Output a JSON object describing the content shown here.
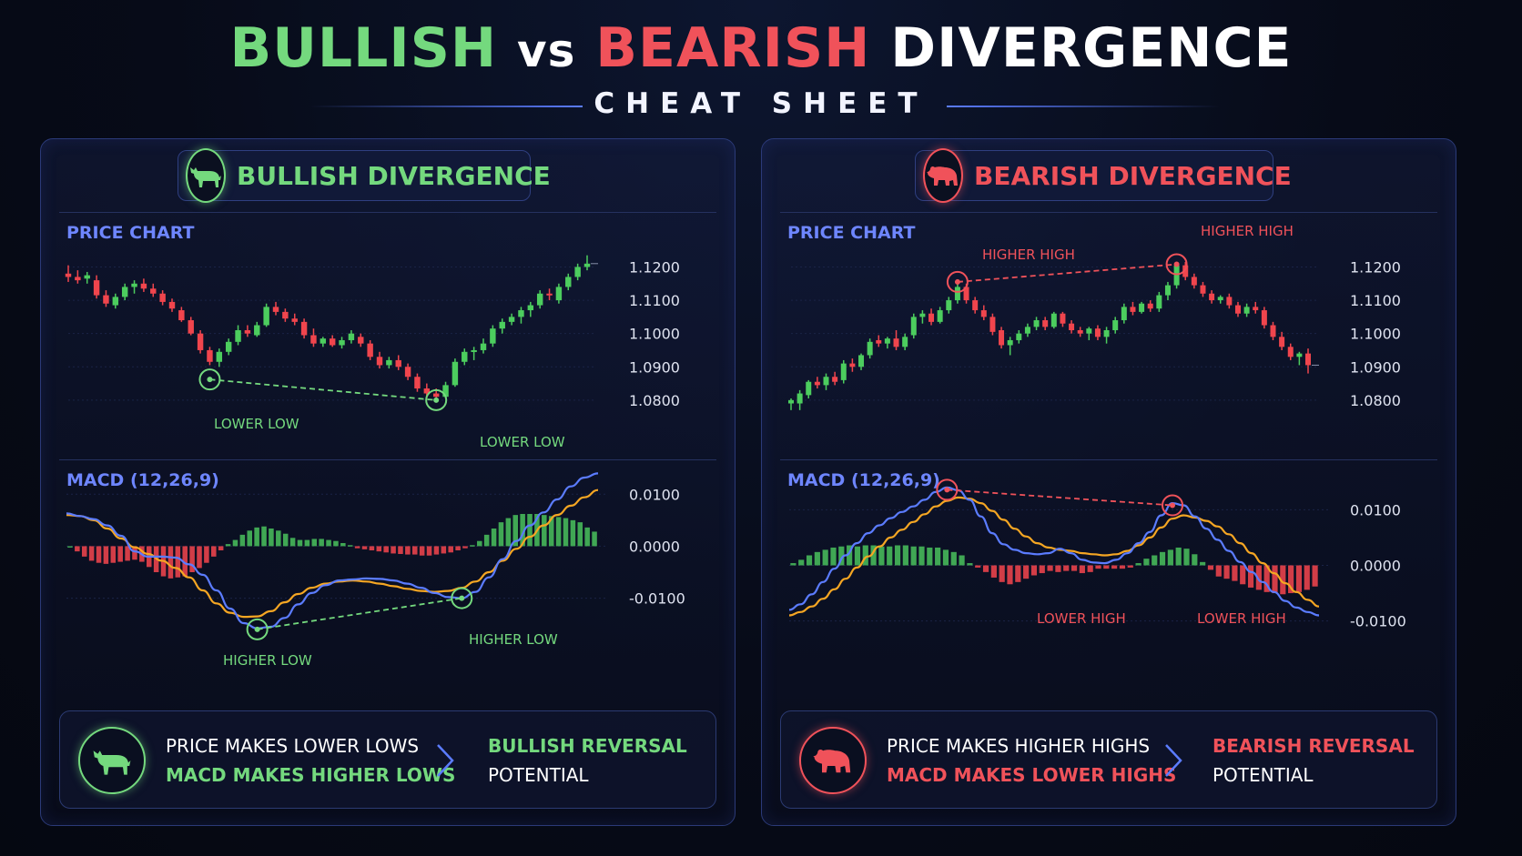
{
  "header": {
    "title_part1": "BULLISH",
    "title_part2": "vs",
    "title_part3": "BEARISH",
    "title_part4": "DIVERGENCE",
    "subtitle": "CHEAT SHEET"
  },
  "colors": {
    "bull": "#74d97e",
    "bear": "#f0525a",
    "accent": "#6e86ff",
    "macd_line": "#5b7cff",
    "signal_line": "#f5a623"
  },
  "bullish": {
    "badge": "BULLISH DIVERGENCE",
    "icon": "bull-icon",
    "price_label": "PRICE CHART",
    "macd_label": "MACD (12,26,9)",
    "summary": {
      "line1": "PRICE MAKES LOWER LOWS",
      "line2": "MACD MAKES HIGHER LOWS",
      "result1": "BULLISH REVERSAL",
      "result2": "POTENTIAL"
    }
  },
  "bearish": {
    "badge": "BEARISH DIVERGENCE",
    "icon": "bear-icon",
    "price_label": "PRICE CHART",
    "macd_label": "MACD (12,26,9)",
    "summary": {
      "line1": "PRICE MAKES HIGHER HIGHS",
      "line2": "MACD MAKES LOWER HIGHS",
      "result1": "BEARISH REVERSAL",
      "result2": "POTENTIAL"
    }
  },
  "chart_data": [
    {
      "id": "bull_price",
      "type": "candlestick",
      "title": "PRICE CHART",
      "y_ticks": [
        "1.1200",
        "1.1100",
        "1.1000",
        "1.0900",
        "1.0800"
      ],
      "y_tick_values": [
        1.12,
        1.11,
        1.1,
        1.09,
        1.08
      ],
      "ylim": [
        1.0775,
        1.1245
      ],
      "candles": [
        [
          1.118,
          1.1205,
          1.1155,
          1.117
        ],
        [
          1.117,
          1.119,
          1.115,
          1.116
        ],
        [
          1.1165,
          1.1185,
          1.115,
          1.1175
        ],
        [
          1.116,
          1.1175,
          1.1105,
          1.1115
        ],
        [
          1.1115,
          1.113,
          1.108,
          1.109
        ],
        [
          1.1085,
          1.112,
          1.1075,
          1.111
        ],
        [
          1.111,
          1.115,
          1.11,
          1.114
        ],
        [
          1.114,
          1.116,
          1.112,
          1.115
        ],
        [
          1.115,
          1.1165,
          1.1125,
          1.1135
        ],
        [
          1.1135,
          1.115,
          1.111,
          1.112
        ],
        [
          1.112,
          1.113,
          1.1085,
          1.1095
        ],
        [
          1.1095,
          1.1105,
          1.1065,
          1.1075
        ],
        [
          1.107,
          1.108,
          1.1035,
          1.104
        ],
        [
          1.104,
          1.105,
          1.0995,
          1.1
        ],
        [
          1.1,
          1.101,
          1.094,
          1.095
        ],
        [
          1.095,
          1.096,
          1.0905,
          1.0915
        ],
        [
          1.0915,
          1.0955,
          1.09,
          1.0945
        ],
        [
          1.0945,
          1.0985,
          1.0935,
          1.0975
        ],
        [
          1.0975,
          1.1025,
          1.0965,
          1.101
        ],
        [
          1.101,
          1.1025,
          1.099,
          1.1
        ],
        [
          1.0995,
          1.1035,
          1.099,
          1.1025
        ],
        [
          1.1025,
          1.109,
          1.102,
          1.108
        ],
        [
          1.108,
          1.1095,
          1.1055,
          1.1065
        ],
        [
          1.1065,
          1.1075,
          1.1035,
          1.1045
        ],
        [
          1.1045,
          1.106,
          1.1025,
          1.1035
        ],
        [
          1.1035,
          1.1045,
          1.0985,
          1.0995
        ],
        [
          1.0995,
          1.1015,
          1.096,
          1.097
        ],
        [
          1.097,
          1.099,
          1.096,
          1.0985
        ],
        [
          1.0985,
          1.0995,
          1.096,
          1.0965
        ],
        [
          1.0965,
          1.099,
          1.0955,
          1.098
        ],
        [
          1.098,
          1.101,
          1.097,
          1.1
        ],
        [
          1.099,
          1.1,
          1.096,
          1.097
        ],
        [
          1.097,
          1.098,
          1.092,
          1.093
        ],
        [
          1.093,
          1.0945,
          1.0895,
          1.0905
        ],
        [
          1.0905,
          1.093,
          1.0895,
          1.092
        ],
        [
          1.092,
          1.0935,
          1.089,
          1.09
        ],
        [
          1.09,
          1.091,
          1.086,
          1.087
        ],
        [
          1.087,
          1.088,
          1.0825,
          1.0835
        ],
        [
          1.0835,
          1.085,
          1.0805,
          1.082
        ],
        [
          1.082,
          1.0835,
          1.08,
          1.081
        ],
        [
          1.081,
          1.0855,
          1.0805,
          1.0845
        ],
        [
          1.0845,
          1.0925,
          1.084,
          1.0915
        ],
        [
          1.0915,
          1.0955,
          1.0905,
          1.0945
        ],
        [
          1.0945,
          1.096,
          1.092,
          1.095
        ],
        [
          1.095,
          1.0985,
          1.094,
          1.097
        ],
        [
          1.097,
          1.1025,
          1.096,
          1.1015
        ],
        [
          1.1015,
          1.1045,
          1.1,
          1.1035
        ],
        [
          1.1035,
          1.106,
          1.1025,
          1.105
        ],
        [
          1.105,
          1.108,
          1.103,
          1.107
        ],
        [
          1.107,
          1.1095,
          1.105,
          1.1085
        ],
        [
          1.1085,
          1.113,
          1.1075,
          1.112
        ],
        [
          1.112,
          1.1135,
          1.11,
          1.1115
        ],
        [
          1.11,
          1.115,
          1.109,
          1.114
        ],
        [
          1.114,
          1.118,
          1.113,
          1.117
        ],
        [
          1.117,
          1.121,
          1.116,
          1.12
        ],
        [
          1.12,
          1.1235,
          1.119,
          1.121
        ]
      ],
      "annotations": [
        {
          "label": "LOWER LOW",
          "value": 1.0862
        },
        {
          "label": "LOWER LOW",
          "value": 1.08
        }
      ]
    },
    {
      "id": "bull_macd",
      "type": "macd",
      "title": "MACD (12,26,9)",
      "y_ticks": [
        "0.0100",
        "0.0000",
        "-0.0100"
      ],
      "y_tick_values": [
        0.01,
        0.0,
        -0.01
      ],
      "ylim": [
        -0.0162,
        0.0146
      ],
      "macd": [
        0.0063,
        0.0058,
        0.0052,
        0.004,
        0.002,
        -0.001,
        -0.002,
        -0.002,
        -0.0022,
        -0.0035,
        -0.0055,
        -0.0085,
        -0.012,
        -0.0148,
        -0.0158,
        -0.0155,
        -0.0138,
        -0.0112,
        -0.009,
        -0.0075,
        -0.0066,
        -0.0064,
        -0.0062,
        -0.0063,
        -0.0066,
        -0.0072,
        -0.008,
        -0.009,
        -0.0098,
        -0.01,
        -0.0088,
        -0.006,
        -0.0025,
        0.001,
        0.004,
        0.0065,
        0.009,
        0.0115,
        0.0132,
        0.014
      ],
      "signal": [
        0.006,
        0.0058,
        0.005,
        0.0034,
        0.0015,
        -0.0002,
        -0.0015,
        -0.0028,
        -0.0042,
        -0.006,
        -0.0085,
        -0.011,
        -0.0128,
        -0.0136,
        -0.0135,
        -0.0125,
        -0.0108,
        -0.0092,
        -0.008,
        -0.0072,
        -0.0068,
        -0.0066,
        -0.0068,
        -0.0072,
        -0.0077,
        -0.0082,
        -0.0086,
        -0.0088,
        -0.0086,
        -0.008,
        -0.0068,
        -0.005,
        -0.0028,
        -0.0005,
        0.0018,
        0.004,
        0.006,
        0.0078,
        0.0094,
        0.0108
      ],
      "histogram": [
        0.0,
        -0.001,
        -0.002,
        -0.0028,
        -0.0032,
        -0.0034,
        -0.0032,
        -0.003,
        -0.0028,
        -0.0026,
        -0.003,
        -0.004,
        -0.005,
        -0.0058,
        -0.0062,
        -0.006,
        -0.0058,
        -0.005,
        -0.0042,
        -0.0032,
        -0.002,
        -0.0008,
        0.0004,
        0.0012,
        0.0022,
        0.003,
        0.0036,
        0.0038,
        0.0034,
        0.003,
        0.0024,
        0.0016,
        0.0012,
        0.0012,
        0.0014,
        0.0014,
        0.0012,
        0.001,
        0.0006,
        0.0002,
        -0.0004,
        -0.0006,
        -0.0008,
        -0.001,
        -0.0012,
        -0.0014,
        -0.0015,
        -0.0016,
        -0.0016,
        -0.0018,
        -0.0018,
        -0.0016,
        -0.0014,
        -0.0012,
        -0.0008,
        -0.0004,
        0.0002,
        0.001,
        0.0022,
        0.0034,
        0.0046,
        0.0054,
        0.006,
        0.0062,
        0.0062,
        0.0062,
        0.006,
        0.0058,
        0.0056,
        0.0054,
        0.005,
        0.0046,
        0.0036,
        0.0028
      ],
      "annotations": [
        {
          "label": "HIGHER LOW",
          "value": -0.016
        },
        {
          "label": "HIGHER LOW",
          "value": -0.01
        }
      ]
    },
    {
      "id": "bear_price",
      "type": "candlestick",
      "title": "PRICE CHART",
      "y_ticks": [
        "1.1200",
        "1.1100",
        "1.1000",
        "1.0900",
        "1.0800"
      ],
      "y_tick_values": [
        1.12,
        1.11,
        1.1,
        1.09,
        1.08
      ],
      "ylim": [
        1.0775,
        1.1245
      ],
      "candles": [
        [
          1.079,
          1.0805,
          1.077,
          1.08
        ],
        [
          1.079,
          1.083,
          1.077,
          1.082
        ],
        [
          1.0815,
          1.086,
          1.0805,
          1.0855
        ],
        [
          1.0855,
          1.087,
          1.0835,
          1.0845
        ],
        [
          1.0845,
          1.088,
          1.083,
          1.087
        ],
        [
          1.087,
          1.0885,
          1.0845,
          1.0855
        ],
        [
          1.086,
          1.092,
          1.085,
          1.091
        ],
        [
          1.091,
          1.0925,
          1.0885,
          1.09
        ],
        [
          1.09,
          1.094,
          1.089,
          1.0935
        ],
        [
          1.0935,
          1.0985,
          1.0925,
          1.0975
        ],
        [
          1.098,
          1.0995,
          1.096,
          1.097
        ],
        [
          1.097,
          1.099,
          1.0955,
          1.0985
        ],
        [
          1.0985,
          1.101,
          1.095,
          1.096
        ],
        [
          1.096,
          1.1,
          1.095,
          1.099
        ],
        [
          1.0995,
          1.106,
          1.0985,
          1.105
        ],
        [
          1.105,
          1.107,
          1.103,
          1.106
        ],
        [
          1.106,
          1.1075,
          1.1025,
          1.1035
        ],
        [
          1.1035,
          1.108,
          1.103,
          1.107
        ],
        [
          1.107,
          1.111,
          1.106,
          1.11
        ],
        [
          1.11,
          1.1155,
          1.109,
          1.114
        ],
        [
          1.114,
          1.115,
          1.109,
          1.11
        ],
        [
          1.11,
          1.111,
          1.106,
          1.107
        ],
        [
          1.107,
          1.1085,
          1.104,
          1.105
        ],
        [
          1.105,
          1.106,
          1.0995,
          1.1005
        ],
        [
          1.101,
          1.102,
          1.0955,
          1.0965
        ],
        [
          1.0965,
          1.099,
          1.0935,
          1.098
        ],
        [
          1.098,
          1.101,
          1.097,
          1.1
        ],
        [
          1.1,
          1.103,
          1.099,
          1.102
        ],
        [
          1.102,
          1.105,
          1.101,
          1.104
        ],
        [
          1.104,
          1.105,
          1.101,
          1.102
        ],
        [
          1.102,
          1.1065,
          1.1015,
          1.106
        ],
        [
          1.106,
          1.1065,
          1.102,
          1.103
        ],
        [
          1.103,
          1.104,
          1.1,
          1.101
        ],
        [
          1.101,
          1.102,
          1.099,
          1.1
        ],
        [
          1.1,
          1.102,
          1.098,
          1.1015
        ],
        [
          1.1015,
          1.1025,
          1.098,
          1.099
        ],
        [
          1.099,
          1.102,
          1.097,
          1.101
        ],
        [
          1.101,
          1.105,
          1.1,
          1.104
        ],
        [
          1.104,
          1.109,
          1.103,
          1.108
        ],
        [
          1.108,
          1.1095,
          1.1055,
          1.1065
        ],
        [
          1.1065,
          1.1095,
          1.106,
          1.109
        ],
        [
          1.109,
          1.11,
          1.1065,
          1.1075
        ],
        [
          1.1075,
          1.1125,
          1.1065,
          1.1115
        ],
        [
          1.1115,
          1.1155,
          1.11,
          1.1145
        ],
        [
          1.1145,
          1.1215,
          1.1135,
          1.1205
        ],
        [
          1.1205,
          1.1215,
          1.116,
          1.117
        ],
        [
          1.117,
          1.118,
          1.1135,
          1.1145
        ],
        [
          1.1145,
          1.1155,
          1.111,
          1.112
        ],
        [
          1.112,
          1.113,
          1.109,
          1.11
        ],
        [
          1.11,
          1.1115,
          1.109,
          1.111
        ],
        [
          1.111,
          1.112,
          1.1075,
          1.1085
        ],
        [
          1.1085,
          1.1095,
          1.105,
          1.106
        ],
        [
          1.106,
          1.109,
          1.105,
          1.108
        ],
        [
          1.108,
          1.1095,
          1.106,
          1.107
        ],
        [
          1.107,
          1.108,
          1.1015,
          1.1025
        ],
        [
          1.1025,
          1.1035,
          1.098,
          1.099
        ],
        [
          1.099,
          1.1005,
          1.095,
          1.096
        ],
        [
          1.096,
          1.097,
          1.092,
          1.093
        ],
        [
          1.093,
          1.0945,
          1.0905,
          1.094
        ],
        [
          1.094,
          1.0955,
          1.088,
          1.0905
        ]
      ],
      "annotations": [
        {
          "label": "HIGHER HIGH",
          "value": 1.1155
        },
        {
          "label": "HIGHER HIGH",
          "value": 1.1208
        }
      ]
    },
    {
      "id": "bear_macd",
      "type": "macd",
      "title": "MACD (12,26,9)",
      "y_ticks": [
        "0.0100",
        "0.0000",
        "-0.0100"
      ],
      "y_tick_values": [
        0.01,
        0.0,
        -0.01
      ],
      "ylim": [
        -0.0117,
        0.0171
      ],
      "macd": [
        -0.008,
        -0.007,
        -0.0052,
        -0.003,
        -0.0006,
        0.0018,
        0.004,
        0.0058,
        0.0072,
        0.0085,
        0.0096,
        0.0106,
        0.0118,
        0.0132,
        0.014,
        0.0135,
        0.0118,
        0.0088,
        0.0058,
        0.0038,
        0.0028,
        0.0022,
        0.002,
        0.0022,
        0.003,
        0.0022,
        0.001,
        0.0005,
        0.0004,
        0.001,
        0.0022,
        0.004,
        0.006,
        0.009,
        0.0112,
        0.0108,
        0.0088,
        0.0066,
        0.0046,
        0.0026,
        0.0006,
        -0.0012,
        -0.003,
        -0.0048,
        -0.0064,
        -0.0076,
        -0.0084,
        -0.009
      ],
      "signal": [
        -0.009,
        -0.0084,
        -0.0074,
        -0.006,
        -0.0043,
        -0.0024,
        -0.0004,
        0.0016,
        0.0034,
        0.005,
        0.0064,
        0.0078,
        0.0092,
        0.0106,
        0.0116,
        0.0122,
        0.012,
        0.0112,
        0.0098,
        0.0082,
        0.0066,
        0.0052,
        0.004,
        0.0032,
        0.0028,
        0.0026,
        0.0022,
        0.002,
        0.0018,
        0.002,
        0.0026,
        0.0036,
        0.005,
        0.0068,
        0.0084,
        0.009,
        0.0086,
        0.008,
        0.007,
        0.0056,
        0.004,
        0.0022,
        0.0004,
        -0.0014,
        -0.0032,
        -0.0048,
        -0.0062,
        -0.0074
      ],
      "histogram": [
        0.0004,
        0.001,
        0.0018,
        0.0024,
        0.0028,
        0.0032,
        0.0034,
        0.0036,
        0.0034,
        0.0036,
        0.0036,
        0.0034,
        0.0034,
        0.0036,
        0.0036,
        0.0034,
        0.0034,
        0.0032,
        0.0032,
        0.0028,
        0.0024,
        0.0018,
        0.0004,
        -0.0004,
        -0.0012,
        -0.0022,
        -0.003,
        -0.0034,
        -0.003,
        -0.0024,
        -0.0018,
        -0.0014,
        -0.001,
        -0.0012,
        -0.001,
        -0.001,
        -0.0014,
        -0.0012,
        -0.0006,
        -0.0006,
        -0.0006,
        -0.0006,
        -0.0004,
        0.0004,
        0.0012,
        0.0018,
        0.0024,
        0.0028,
        0.0032,
        0.003,
        0.002,
        0.0006,
        -0.0008,
        -0.002,
        -0.0024,
        -0.0028,
        -0.0034,
        -0.004,
        -0.0044,
        -0.0048,
        -0.005,
        -0.0052,
        -0.005,
        -0.0048,
        -0.0044,
        -0.0038
      ],
      "annotations": [
        {
          "label": "LOWER HIGH",
          "value": 0.0136
        },
        {
          "label": "LOWER HIGH",
          "value": 0.0108
        }
      ]
    }
  ]
}
